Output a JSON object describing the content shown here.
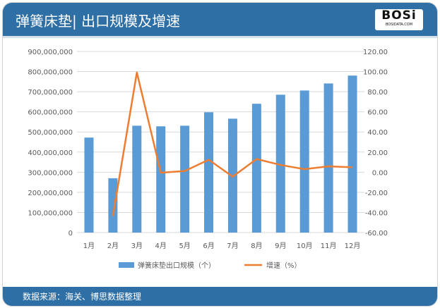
{
  "header": {
    "title": "弹簧床垫| 出口规模及增速",
    "logo_text": "BOSi",
    "logo_sub": "BOSIDATA.COM"
  },
  "footer": {
    "source": "数据来源：海关、博思数据整理"
  },
  "colors": {
    "bar": "#5b9bd5",
    "line": "#ed7d31",
    "header": "#2e6fa6"
  },
  "chart_data": {
    "type": "bar+line",
    "categories": [
      "1月",
      "2月",
      "3月",
      "4月",
      "5月",
      "6月",
      "7月",
      "8月",
      "9月",
      "10月",
      "11月",
      "12月"
    ],
    "series": [
      {
        "name": "弹簧床垫出口规模（个）",
        "type": "bar",
        "axis": "left",
        "values": [
          472000000,
          270000000,
          531000000,
          528000000,
          531000000,
          598000000,
          566000000,
          640000000,
          685000000,
          706000000,
          741000000,
          780000000
        ]
      },
      {
        "name": "增速（%）",
        "type": "line",
        "axis": "right",
        "values": [
          null,
          -43.6,
          99.1,
          -0.5,
          1.2,
          12.4,
          -4.4,
          13.1,
          7.2,
          3.0,
          5.8,
          4.9
        ]
      }
    ],
    "left_axis": {
      "ylim": [
        0,
        900000000
      ],
      "ticks": [
        "0",
        "100,000,000",
        "200,000,000",
        "300,000,000",
        "400,000,000",
        "500,000,000",
        "600,000,000",
        "700,000,000",
        "800,000,000",
        "900,000,000"
      ]
    },
    "right_axis": {
      "ylim": [
        -60,
        120
      ],
      "ticks": [
        "-60.00",
        "-40.00",
        "-20.00",
        "0.00",
        "20.00",
        "40.00",
        "60.00",
        "80.00",
        "100.00",
        "120.00"
      ]
    },
    "grid": true,
    "legend": "bottom"
  }
}
